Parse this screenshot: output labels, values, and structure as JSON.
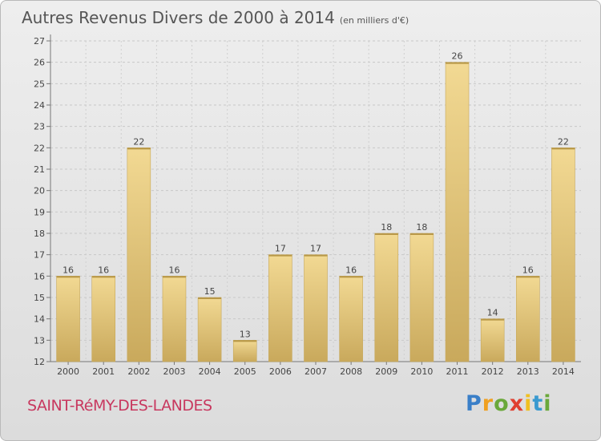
{
  "header": {
    "title": "Autres Revenus Divers de 2000 à 2014",
    "subtitle": "(en milliers d'€)"
  },
  "footer": {
    "commune": "SAINT-RéMY-DES-LANDES",
    "logo_letters": [
      "P",
      "r",
      "o",
      "x",
      "i",
      "t",
      "i"
    ],
    "logo_colors": [
      "#3a7fc8",
      "#f0a020",
      "#6aa83a",
      "#e04030",
      "#f0c020",
      "#3a9ad0",
      "#6aa83a"
    ]
  },
  "chart_data": {
    "type": "bar",
    "categories": [
      "2000",
      "2001",
      "2002",
      "2003",
      "2004",
      "2005",
      "2006",
      "2007",
      "2008",
      "2009",
      "2010",
      "2011",
      "2012",
      "2013",
      "2014"
    ],
    "values": [
      16,
      16,
      22,
      16,
      15,
      13,
      17,
      17,
      16,
      18,
      18,
      26,
      14,
      16,
      22
    ],
    "ylim": [
      12,
      27
    ],
    "yticks": [
      12,
      13,
      14,
      15,
      16,
      17,
      18,
      19,
      20,
      21,
      22,
      23,
      24,
      25,
      26,
      27
    ],
    "grid": true,
    "bar_color": "#e4c77e"
  }
}
